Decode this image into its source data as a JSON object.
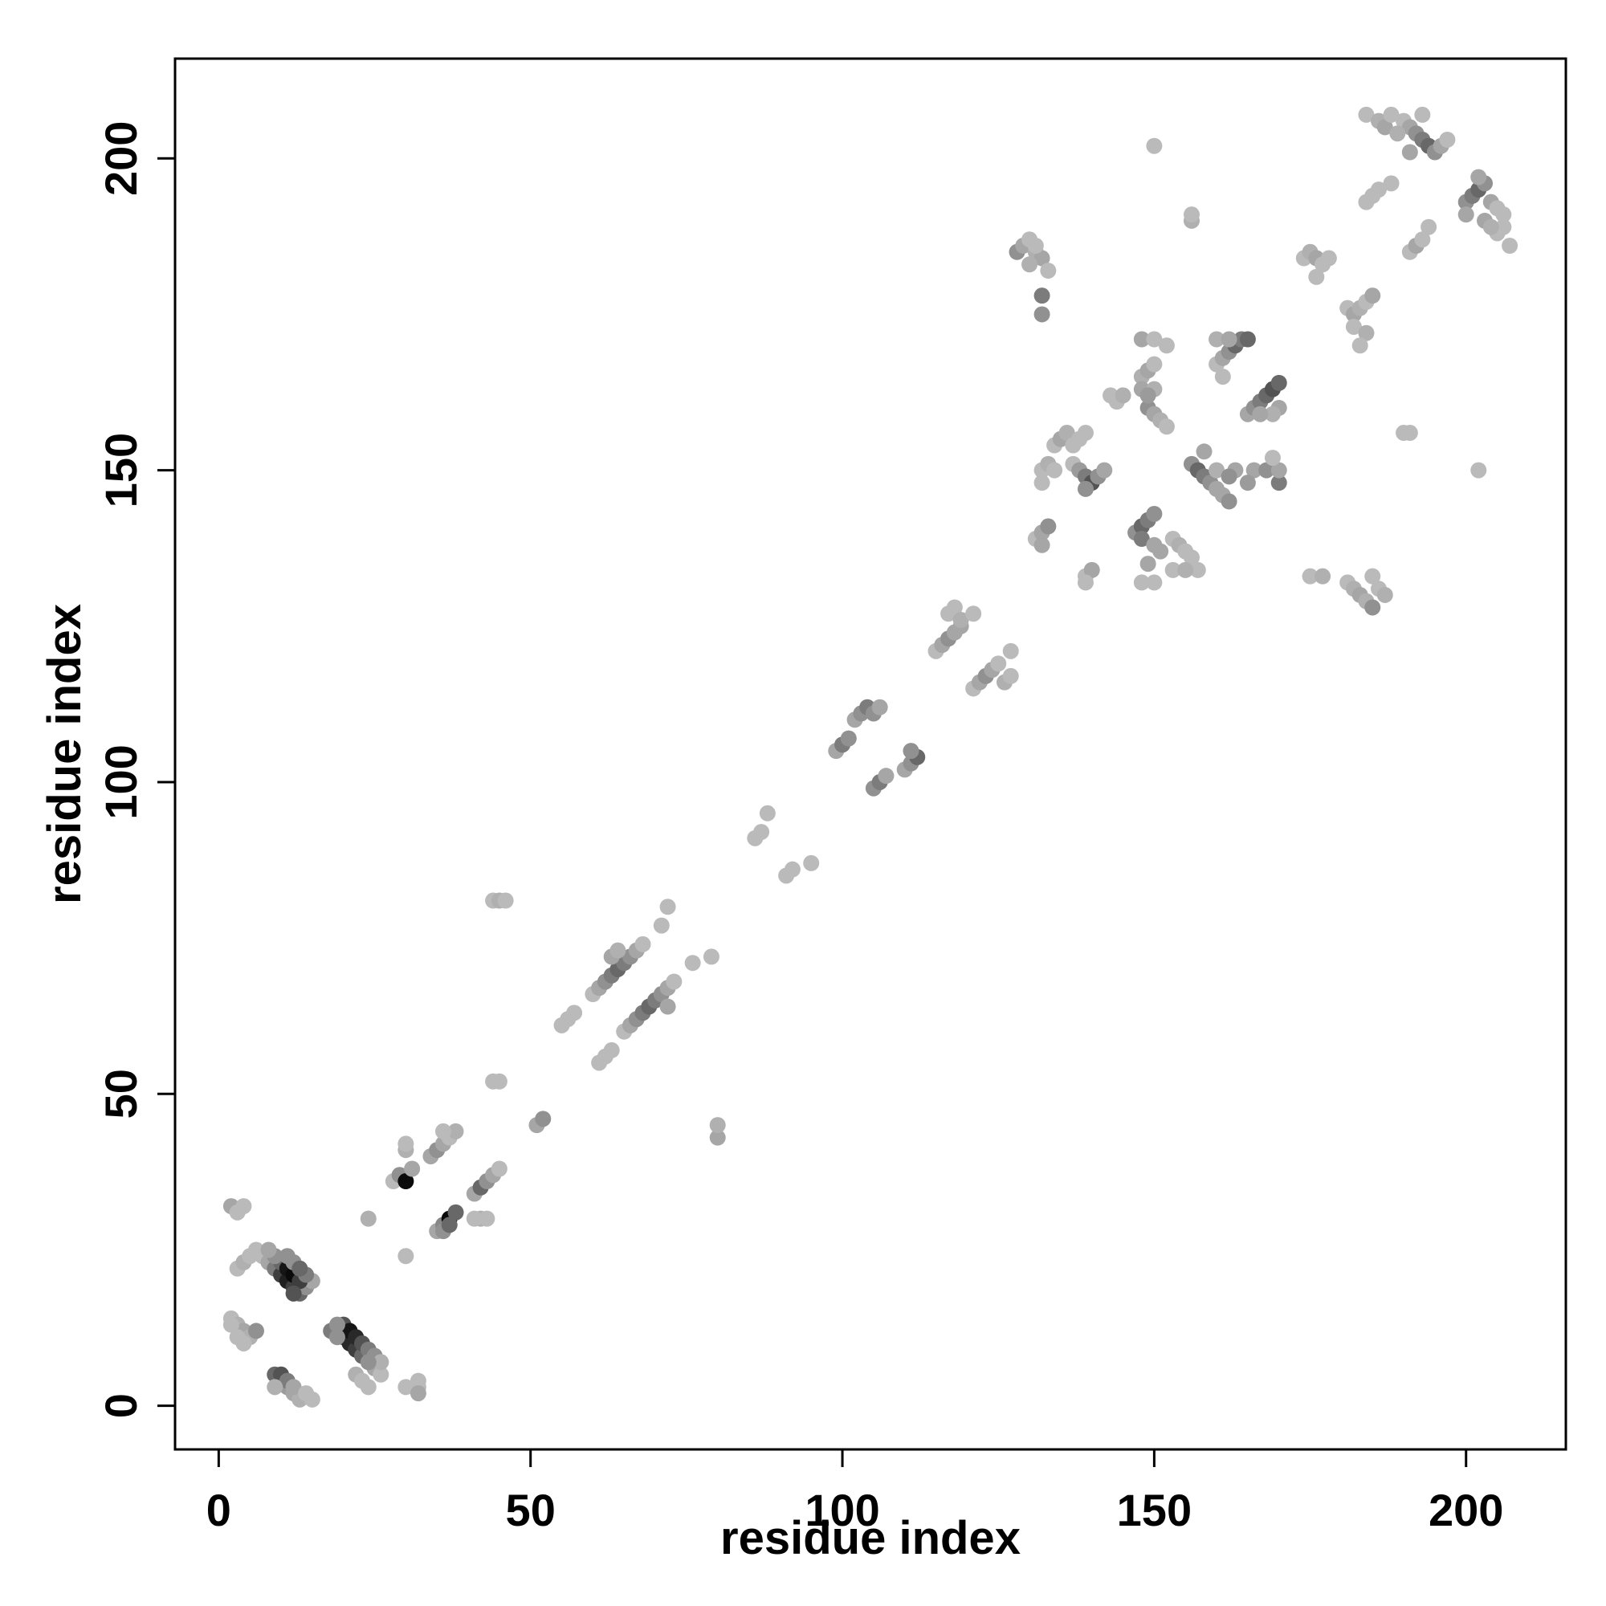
{
  "chart_data": {
    "type": "scatter",
    "title": "",
    "xlabel": "residue index",
    "ylabel": "residue index",
    "xlim": [
      -7,
      216
    ],
    "ylim": [
      -7,
      216
    ],
    "xticks": [
      0,
      50,
      100,
      150,
      200
    ],
    "yticks": [
      0,
      50,
      100,
      150,
      200
    ],
    "xtick_labels": [
      "0",
      "50",
      "100",
      "150",
      "200"
    ],
    "ytick_labels": [
      "0",
      "50",
      "100",
      "150",
      "200"
    ],
    "grid": false,
    "legend": "none",
    "point_color_scale": [
      "#cfcfcf",
      "#000000"
    ],
    "points": [
      [
        2,
        14,
        0.1
      ],
      [
        3,
        13,
        0.15
      ],
      [
        4,
        12,
        0.2
      ],
      [
        5,
        11,
        0.15
      ],
      [
        6,
        12,
        0.3
      ],
      [
        3,
        11,
        0.1
      ],
      [
        4,
        10,
        0.1
      ],
      [
        2,
        13,
        0.1
      ],
      [
        9,
        5,
        0.5
      ],
      [
        10,
        4,
        0.35
      ],
      [
        11,
        3,
        0.25
      ],
      [
        12,
        2,
        0.2
      ],
      [
        13,
        1,
        0.15
      ],
      [
        10,
        5,
        0.6
      ],
      [
        11,
        4,
        0.4
      ],
      [
        12,
        3,
        0.2
      ],
      [
        14,
        2,
        0.1
      ],
      [
        9,
        3,
        0.15
      ],
      [
        15,
        1,
        0.1
      ],
      [
        19,
        12,
        0.5
      ],
      [
        20,
        11,
        0.7
      ],
      [
        21,
        10,
        0.8
      ],
      [
        22,
        9,
        0.7
      ],
      [
        23,
        8,
        0.5
      ],
      [
        20,
        13,
        0.6
      ],
      [
        21,
        12,
        0.9
      ],
      [
        22,
        11,
        0.8
      ],
      [
        23,
        10,
        0.6
      ],
      [
        24,
        9,
        0.4
      ],
      [
        25,
        8,
        0.3
      ],
      [
        18,
        12,
        0.4
      ],
      [
        19,
        13,
        0.3
      ],
      [
        22,
        5,
        0.15
      ],
      [
        23,
        4,
        0.1
      ],
      [
        25,
        6,
        0.2
      ],
      [
        24,
        3,
        0.1
      ],
      [
        26,
        5,
        0.1
      ],
      [
        19,
        11,
        0.3
      ],
      [
        26,
        7,
        0.15
      ],
      [
        24,
        7,
        0.3
      ],
      [
        3,
        22,
        0.1
      ],
      [
        4,
        23,
        0.15
      ],
      [
        5,
        24,
        0.1
      ],
      [
        6,
        25,
        0.1
      ],
      [
        7,
        24,
        0.1
      ],
      [
        8,
        23,
        0.2
      ],
      [
        9,
        22,
        0.4
      ],
      [
        10,
        21,
        0.7
      ],
      [
        11,
        20,
        0.85
      ],
      [
        12,
        19,
        0.7
      ],
      [
        13,
        18,
        0.5
      ],
      [
        14,
        19,
        0.3
      ],
      [
        15,
        20,
        0.2
      ],
      [
        10,
        23,
        0.5
      ],
      [
        11,
        22,
        0.9
      ],
      [
        12,
        21,
        0.95
      ],
      [
        13,
        20,
        0.7
      ],
      [
        14,
        21,
        0.4
      ],
      [
        12,
        23,
        0.3
      ],
      [
        11,
        24,
        0.3
      ],
      [
        13,
        22,
        0.5
      ],
      [
        9,
        24,
        0.3
      ],
      [
        8,
        25,
        0.2
      ],
      [
        12,
        18,
        0.6
      ],
      [
        2,
        32,
        0.2
      ],
      [
        3,
        31,
        0.1
      ],
      [
        4,
        32,
        0.1
      ],
      [
        24,
        30,
        0.15
      ],
      [
        30,
        24,
        0.1
      ],
      [
        28,
        36,
        0.1
      ],
      [
        29,
        37,
        0.3
      ],
      [
        30,
        36,
        0.95
      ],
      [
        31,
        38,
        0.2
      ],
      [
        30,
        41,
        0.15
      ],
      [
        30,
        42,
        0.1
      ],
      [
        32,
        3,
        0.1
      ],
      [
        32,
        4,
        0.1
      ],
      [
        30,
        3,
        0.1
      ],
      [
        32,
        2,
        0.2
      ],
      [
        35,
        28,
        0.2
      ],
      [
        36,
        29,
        0.35
      ],
      [
        37,
        30,
        0.95
      ],
      [
        38,
        31,
        0.5
      ],
      [
        36,
        28,
        0.3
      ],
      [
        37,
        29,
        0.5
      ],
      [
        34,
        40,
        0.2
      ],
      [
        35,
        41,
        0.3
      ],
      [
        36,
        42,
        0.2
      ],
      [
        37,
        43,
        0.1
      ],
      [
        38,
        44,
        0.15
      ],
      [
        36,
        44,
        0.1
      ],
      [
        41,
        34,
        0.2
      ],
      [
        42,
        35,
        0.5
      ],
      [
        43,
        36,
        0.3
      ],
      [
        44,
        37,
        0.2
      ],
      [
        45,
        38,
        0.1
      ],
      [
        42,
        30,
        0.15
      ],
      [
        43,
        30,
        0.1
      ],
      [
        41,
        30,
        0.1
      ],
      [
        44,
        52,
        0.1
      ],
      [
        45,
        52,
        0.1
      ],
      [
        44,
        81,
        0.1
      ],
      [
        45,
        81,
        0.15
      ],
      [
        46,
        81,
        0.1
      ],
      [
        51,
        45,
        0.2
      ],
      [
        52,
        46,
        0.3
      ],
      [
        55,
        61,
        0.1
      ],
      [
        56,
        62,
        0.1
      ],
      [
        57,
        63,
        0.1
      ],
      [
        61,
        55,
        0.1
      ],
      [
        62,
        56,
        0.1
      ],
      [
        63,
        57,
        0.1
      ],
      [
        60,
        66,
        0.1
      ],
      [
        61,
        67,
        0.2
      ],
      [
        62,
        68,
        0.3
      ],
      [
        63,
        69,
        0.4
      ],
      [
        64,
        70,
        0.5
      ],
      [
        65,
        71,
        0.4
      ],
      [
        66,
        72,
        0.3
      ],
      [
        67,
        73,
        0.2
      ],
      [
        68,
        74,
        0.1
      ],
      [
        63,
        72,
        0.2
      ],
      [
        64,
        73,
        0.15
      ],
      [
        65,
        60,
        0.1
      ],
      [
        66,
        61,
        0.2
      ],
      [
        67,
        62,
        0.3
      ],
      [
        68,
        63,
        0.4
      ],
      [
        69,
        64,
        0.5
      ],
      [
        70,
        65,
        0.4
      ],
      [
        71,
        66,
        0.3
      ],
      [
        72,
        67,
        0.2
      ],
      [
        73,
        68,
        0.1
      ],
      [
        72,
        64,
        0.2
      ],
      [
        71,
        77,
        0.1
      ],
      [
        72,
        80,
        0.1
      ],
      [
        76,
        71,
        0.1
      ],
      [
        79,
        72,
        0.1
      ],
      [
        80,
        43,
        0.2
      ],
      [
        80,
        45,
        0.15
      ],
      [
        86,
        91,
        0.1
      ],
      [
        87,
        92,
        0.1
      ],
      [
        88,
        95,
        0.1
      ],
      [
        91,
        85,
        0.1
      ],
      [
        92,
        86,
        0.1
      ],
      [
        95,
        87,
        0.1
      ],
      [
        99,
        105,
        0.2
      ],
      [
        100,
        106,
        0.4
      ],
      [
        101,
        107,
        0.3
      ],
      [
        102,
        110,
        0.2
      ],
      [
        103,
        111,
        0.3
      ],
      [
        104,
        112,
        0.4
      ],
      [
        105,
        111,
        0.3
      ],
      [
        106,
        112,
        0.2
      ],
      [
        105,
        99,
        0.3
      ],
      [
        106,
        100,
        0.4
      ],
      [
        107,
        101,
        0.2
      ],
      [
        110,
        102,
        0.2
      ],
      [
        111,
        103,
        0.3
      ],
      [
        112,
        104,
        0.5
      ],
      [
        111,
        105,
        0.3
      ],
      [
        115,
        121,
        0.1
      ],
      [
        116,
        122,
        0.2
      ],
      [
        117,
        123,
        0.3
      ],
      [
        118,
        124,
        0.2
      ],
      [
        119,
        125,
        0.2
      ],
      [
        117,
        127,
        0.1
      ],
      [
        118,
        128,
        0.1
      ],
      [
        119,
        126,
        0.15
      ],
      [
        121,
        127,
        0.1
      ],
      [
        121,
        115,
        0.1
      ],
      [
        122,
        116,
        0.2
      ],
      [
        123,
        117,
        0.3
      ],
      [
        124,
        118,
        0.2
      ],
      [
        125,
        119,
        0.1
      ],
      [
        126,
        116,
        0.15
      ],
      [
        127,
        117,
        0.1
      ],
      [
        127,
        121,
        0.1
      ],
      [
        128,
        185,
        0.3
      ],
      [
        129,
        186,
        0.2
      ],
      [
        130,
        187,
        0.1
      ],
      [
        131,
        185,
        0.15
      ],
      [
        132,
        184,
        0.2
      ],
      [
        130,
        183,
        0.15
      ],
      [
        133,
        182,
        0.1
      ],
      [
        132,
        178,
        0.4
      ],
      [
        132,
        175,
        0.3
      ],
      [
        131,
        186,
        0.1
      ],
      [
        131,
        139,
        0.1
      ],
      [
        132,
        140,
        0.2
      ],
      [
        133,
        141,
        0.3
      ],
      [
        132,
        138,
        0.2
      ],
      [
        132,
        150,
        0.1
      ],
      [
        133,
        151,
        0.15
      ],
      [
        134,
        150,
        0.1
      ],
      [
        132,
        148,
        0.1
      ],
      [
        134,
        154,
        0.1
      ],
      [
        135,
        155,
        0.2
      ],
      [
        136,
        156,
        0.15
      ],
      [
        137,
        154,
        0.1
      ],
      [
        138,
        155,
        0.1
      ],
      [
        139,
        156,
        0.1
      ],
      [
        137,
        151,
        0.1
      ],
      [
        138,
        150,
        0.25
      ],
      [
        139,
        149,
        0.4
      ],
      [
        140,
        148,
        0.6
      ],
      [
        141,
        149,
        0.3
      ],
      [
        142,
        150,
        0.2
      ],
      [
        139,
        147,
        0.3
      ],
      [
        139,
        133,
        0.1
      ],
      [
        140,
        134,
        0.2
      ],
      [
        139,
        132,
        0.1
      ],
      [
        143,
        162,
        0.1
      ],
      [
        144,
        161,
        0.1
      ],
      [
        145,
        162,
        0.15
      ],
      [
        147,
        140,
        0.3
      ],
      [
        148,
        141,
        0.5
      ],
      [
        149,
        142,
        0.4
      ],
      [
        150,
        143,
        0.3
      ],
      [
        148,
        139,
        0.4
      ],
      [
        150,
        138,
        0.2
      ],
      [
        151,
        137,
        0.2
      ],
      [
        148,
        132,
        0.1
      ],
      [
        150,
        132,
        0.1
      ],
      [
        149,
        135,
        0.2
      ],
      [
        148,
        165,
        0.15
      ],
      [
        149,
        166,
        0.2
      ],
      [
        150,
        167,
        0.1
      ],
      [
        148,
        171,
        0.2
      ],
      [
        150,
        171,
        0.1
      ],
      [
        149,
        160,
        0.3
      ],
      [
        150,
        159,
        0.2
      ],
      [
        151,
        158,
        0.15
      ],
      [
        152,
        157,
        0.1
      ],
      [
        148,
        163,
        0.2
      ],
      [
        150,
        163,
        0.15
      ],
      [
        152,
        170,
        0.1
      ],
      [
        149,
        162,
        0.25
      ],
      [
        153,
        139,
        0.1
      ],
      [
        154,
        138,
        0.15
      ],
      [
        155,
        137,
        0.1
      ],
      [
        156,
        136,
        0.1
      ],
      [
        157,
        134,
        0.1
      ],
      [
        153,
        134,
        0.1
      ],
      [
        155,
        134,
        0.15
      ],
      [
        156,
        151,
        0.3
      ],
      [
        157,
        150,
        0.5
      ],
      [
        158,
        149,
        0.4
      ],
      [
        159,
        148,
        0.3
      ],
      [
        160,
        147,
        0.2
      ],
      [
        161,
        146,
        0.2
      ],
      [
        162,
        145,
        0.3
      ],
      [
        158,
        153,
        0.2
      ],
      [
        160,
        150,
        0.15
      ],
      [
        163,
        150,
        0.2
      ],
      [
        166,
        150,
        0.2
      ],
      [
        168,
        150,
        0.3
      ],
      [
        170,
        148,
        0.4
      ],
      [
        170,
        150,
        0.2
      ],
      [
        169,
        152,
        0.1
      ],
      [
        165,
        148,
        0.25
      ],
      [
        162,
        149,
        0.3
      ],
      [
        160,
        167,
        0.1
      ],
      [
        161,
        168,
        0.2
      ],
      [
        162,
        169,
        0.3
      ],
      [
        163,
        170,
        0.5
      ],
      [
        164,
        171,
        0.4
      ],
      [
        160,
        171,
        0.15
      ],
      [
        162,
        171,
        0.2
      ],
      [
        165,
        171,
        0.5
      ],
      [
        161,
        165,
        0.1
      ],
      [
        165,
        159,
        0.2
      ],
      [
        166,
        160,
        0.3
      ],
      [
        167,
        161,
        0.4
      ],
      [
        168,
        162,
        0.5
      ],
      [
        169,
        163,
        0.6
      ],
      [
        170,
        164,
        0.5
      ],
      [
        170,
        160,
        0.2
      ],
      [
        169,
        159,
        0.15
      ],
      [
        167,
        159,
        0.2
      ],
      [
        174,
        184,
        0.1
      ],
      [
        175,
        185,
        0.15
      ],
      [
        176,
        184,
        0.2
      ],
      [
        177,
        183,
        0.1
      ],
      [
        178,
        184,
        0.1
      ],
      [
        176,
        181,
        0.1
      ],
      [
        175,
        133,
        0.1
      ],
      [
        177,
        133,
        0.15
      ],
      [
        181,
        176,
        0.1
      ],
      [
        182,
        175,
        0.2
      ],
      [
        183,
        176,
        0.15
      ],
      [
        184,
        177,
        0.1
      ],
      [
        182,
        173,
        0.1
      ],
      [
        184,
        172,
        0.15
      ],
      [
        185,
        178,
        0.2
      ],
      [
        183,
        170,
        0.1
      ],
      [
        181,
        132,
        0.1
      ],
      [
        182,
        131,
        0.15
      ],
      [
        183,
        130,
        0.2
      ],
      [
        184,
        129,
        0.15
      ],
      [
        185,
        128,
        0.3
      ],
      [
        186,
        131,
        0.1
      ],
      [
        187,
        130,
        0.15
      ],
      [
        185,
        133,
        0.1
      ],
      [
        184,
        193,
        0.1
      ],
      [
        185,
        194,
        0.1
      ],
      [
        186,
        195,
        0.1
      ],
      [
        188,
        196,
        0.1
      ],
      [
        191,
        185,
        0.1
      ],
      [
        192,
        186,
        0.2
      ],
      [
        193,
        187,
        0.1
      ],
      [
        194,
        189,
        0.1
      ],
      [
        184,
        207,
        0.1
      ],
      [
        186,
        206,
        0.15
      ],
      [
        187,
        205,
        0.2
      ],
      [
        188,
        207,
        0.1
      ],
      [
        190,
        206,
        0.1
      ],
      [
        191,
        205,
        0.2
      ],
      [
        192,
        204,
        0.3
      ],
      [
        193,
        203,
        0.4
      ],
      [
        194,
        202,
        0.5
      ],
      [
        195,
        201,
        0.3
      ],
      [
        196,
        202,
        0.2
      ],
      [
        197,
        203,
        0.1
      ],
      [
        191,
        201,
        0.2
      ],
      [
        189,
        204,
        0.15
      ],
      [
        193,
        207,
        0.1
      ],
      [
        200,
        193,
        0.3
      ],
      [
        201,
        194,
        0.4
      ],
      [
        202,
        195,
        0.5
      ],
      [
        203,
        196,
        0.3
      ],
      [
        204,
        193,
        0.2
      ],
      [
        205,
        192,
        0.1
      ],
      [
        206,
        191,
        0.1
      ],
      [
        203,
        190,
        0.2
      ],
      [
        205,
        188,
        0.1
      ],
      [
        207,
        186,
        0.1
      ],
      [
        202,
        197,
        0.2
      ],
      [
        206,
        189,
        0.1
      ],
      [
        200,
        191,
        0.2
      ],
      [
        204,
        189,
        0.15
      ],
      [
        150,
        202,
        0.1
      ],
      [
        156,
        190,
        0.15
      ],
      [
        156,
        191,
        0.1
      ],
      [
        190,
        156,
        0.1
      ],
      [
        191,
        156,
        0.1
      ],
      [
        202,
        150,
        0.1
      ]
    ]
  }
}
